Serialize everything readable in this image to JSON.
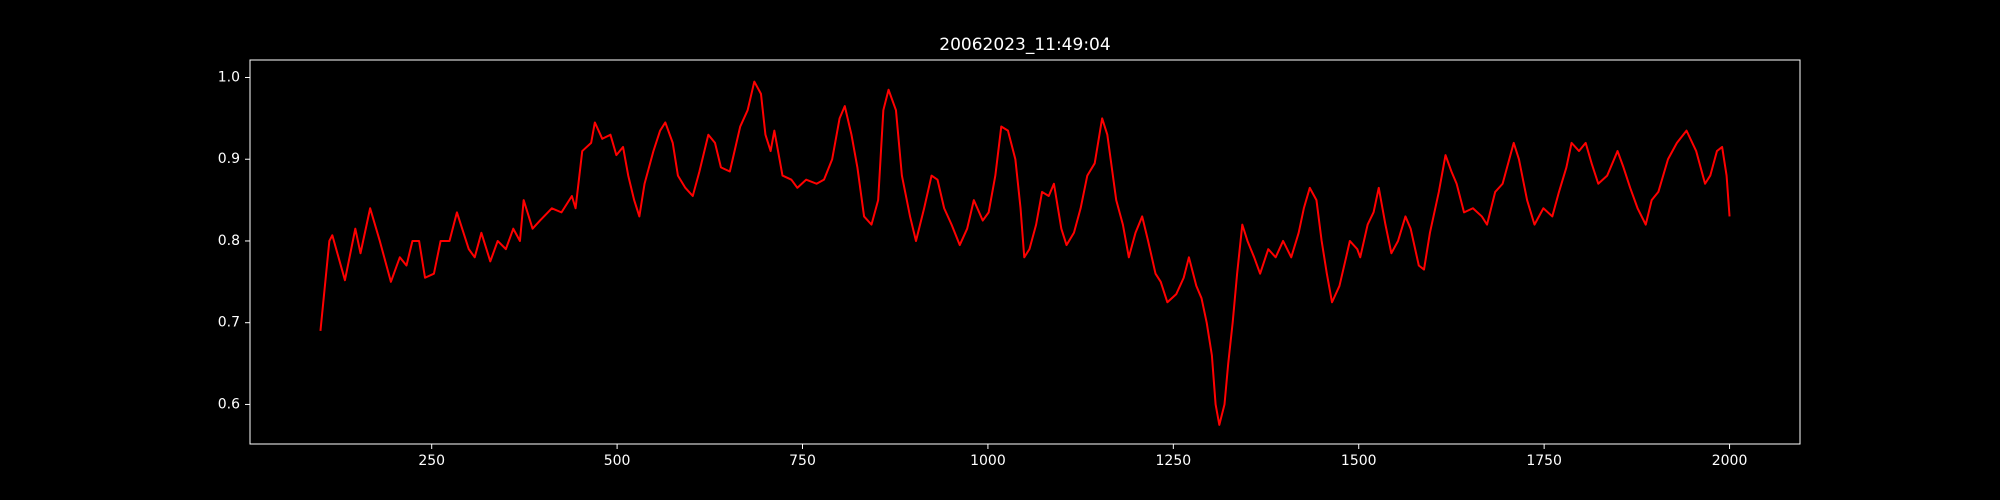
{
  "chart_data": {
    "type": "line",
    "title": "20062023_11:49:04",
    "x": [
      100,
      112,
      116,
      133,
      147,
      154,
      167,
      180,
      195,
      207,
      216,
      224,
      233,
      241,
      253,
      262,
      274,
      284,
      300,
      308,
      317,
      329,
      339,
      350,
      360,
      369,
      374,
      386,
      396,
      412,
      425,
      439,
      444,
      453,
      465,
      470,
      480,
      491,
      499,
      508,
      515,
      523,
      530,
      537,
      549,
      558,
      565,
      575,
      582,
      592,
      602,
      611,
      623,
      632,
      640,
      652,
      666,
      676,
      685,
      694,
      700,
      707,
      712,
      723,
      735,
      743,
      755,
      769,
      779,
      790,
      800,
      807,
      816,
      824,
      833,
      843,
      852,
      859,
      866,
      876,
      884,
      895,
      903,
      914,
      924,
      932,
      941,
      951,
      962,
      972,
      981,
      993,
      1001,
      1010,
      1018,
      1027,
      1037,
      1044,
      1049,
      1056,
      1065,
      1073,
      1082,
      1089,
      1099,
      1106,
      1116,
      1125,
      1134,
      1144,
      1154,
      1161,
      1173,
      1182,
      1190,
      1199,
      1208,
      1216,
      1226,
      1233,
      1242,
      1254,
      1264,
      1271,
      1281,
      1288,
      1295,
      1302,
      1307,
      1312,
      1319,
      1324,
      1330,
      1336,
      1343,
      1350,
      1359,
      1367,
      1378,
      1388,
      1398,
      1409,
      1419,
      1426,
      1434,
      1443,
      1450,
      1457,
      1464,
      1474,
      1483,
      1488,
      1498,
      1502,
      1512,
      1520,
      1527,
      1536,
      1544,
      1553,
      1563,
      1570,
      1581,
      1588,
      1596,
      1608,
      1617,
      1625,
      1632,
      1642,
      1654,
      1666,
      1673,
      1684,
      1694,
      1709,
      1716,
      1727,
      1737,
      1749,
      1761,
      1770,
      1780,
      1787,
      1797,
      1806,
      1814,
      1823,
      1835,
      1849,
      1857,
      1866,
      1876,
      1887,
      1895,
      1904,
      1917,
      1929,
      1942,
      1955,
      1967,
      1974,
      1983,
      1990,
      1996,
      2000
    ],
    "values": [
      0.69,
      0.8,
      0.807,
      0.752,
      0.815,
      0.785,
      0.84,
      0.8,
      0.75,
      0.78,
      0.77,
      0.8,
      0.8,
      0.755,
      0.76,
      0.8,
      0.8,
      0.835,
      0.79,
      0.78,
      0.81,
      0.775,
      0.8,
      0.79,
      0.815,
      0.8,
      0.85,
      0.815,
      0.825,
      0.84,
      0.835,
      0.855,
      0.84,
      0.91,
      0.92,
      0.945,
      0.925,
      0.93,
      0.905,
      0.915,
      0.88,
      0.85,
      0.83,
      0.87,
      0.91,
      0.935,
      0.945,
      0.92,
      0.88,
      0.865,
      0.855,
      0.885,
      0.93,
      0.92,
      0.89,
      0.885,
      0.94,
      0.96,
      0.995,
      0.98,
      0.93,
      0.91,
      0.935,
      0.88,
      0.875,
      0.865,
      0.875,
      0.87,
      0.875,
      0.9,
      0.95,
      0.965,
      0.93,
      0.89,
      0.83,
      0.82,
      0.85,
      0.96,
      0.985,
      0.96,
      0.88,
      0.83,
      0.8,
      0.84,
      0.88,
      0.875,
      0.84,
      0.82,
      0.795,
      0.815,
      0.85,
      0.825,
      0.835,
      0.88,
      0.94,
      0.935,
      0.9,
      0.84,
      0.78,
      0.79,
      0.82,
      0.86,
      0.855,
      0.87,
      0.815,
      0.795,
      0.81,
      0.84,
      0.88,
      0.895,
      0.95,
      0.93,
      0.85,
      0.82,
      0.78,
      0.81,
      0.83,
      0.8,
      0.76,
      0.75,
      0.725,
      0.735,
      0.755,
      0.78,
      0.745,
      0.73,
      0.7,
      0.66,
      0.6,
      0.575,
      0.6,
      0.65,
      0.7,
      0.76,
      0.82,
      0.8,
      0.78,
      0.76,
      0.79,
      0.78,
      0.8,
      0.78,
      0.81,
      0.84,
      0.865,
      0.85,
      0.8,
      0.76,
      0.725,
      0.745,
      0.78,
      0.8,
      0.79,
      0.78,
      0.82,
      0.835,
      0.865,
      0.82,
      0.785,
      0.8,
      0.83,
      0.815,
      0.77,
      0.765,
      0.81,
      0.86,
      0.905,
      0.885,
      0.87,
      0.835,
      0.84,
      0.83,
      0.82,
      0.86,
      0.87,
      0.92,
      0.9,
      0.85,
      0.82,
      0.84,
      0.83,
      0.86,
      0.89,
      0.92,
      0.91,
      0.92,
      0.895,
      0.87,
      0.88,
      0.91,
      0.89,
      0.865,
      0.84,
      0.82,
      0.85,
      0.86,
      0.9,
      0.92,
      0.935,
      0.91,
      0.87,
      0.88,
      0.91,
      0.915,
      0.88,
      0.83
    ],
    "color": "#ff0000",
    "xlim": [
      5,
      2095
    ],
    "ylim": [
      0.5516,
      1.0214
    ],
    "xticks": [
      250,
      500,
      750,
      1000,
      1250,
      1500,
      1750,
      2000
    ],
    "yticks": [
      0.6,
      0.7,
      0.8,
      0.9,
      {
        "value": 1.0,
        "label": "1.0"
      }
    ]
  }
}
